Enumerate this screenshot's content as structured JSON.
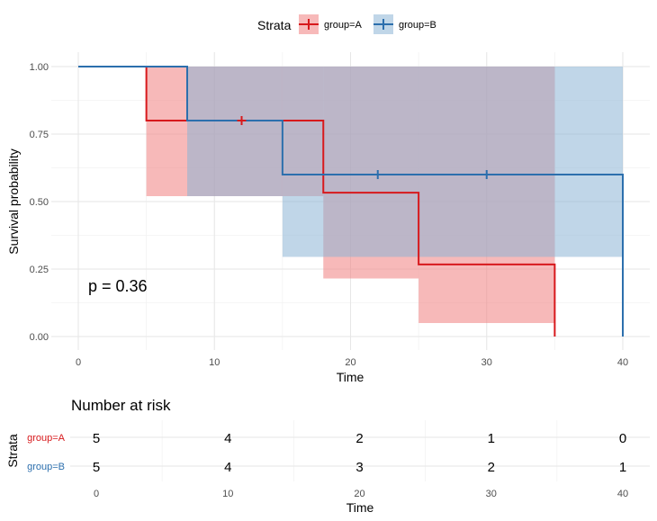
{
  "chart_data": [
    {
      "type": "line",
      "subtype": "kaplan-meier",
      "xlabel": "Time",
      "ylabel": "Survival probability",
      "xlim": [
        0,
        40
      ],
      "ylim": [
        0,
        1
      ],
      "x_ticks": [
        0,
        10,
        20,
        30,
        40
      ],
      "y_ticks": [
        0,
        0.25,
        0.5,
        0.75,
        1
      ],
      "x_tick_labels": [
        "0",
        "10",
        "20",
        "30",
        "40"
      ],
      "y_tick_labels": [
        "0.00",
        "0.25",
        "0.50",
        "0.75",
        "1.00"
      ],
      "grid": true,
      "legend": {
        "title": "Strata",
        "position": "top"
      },
      "annotation": "p = 0.36",
      "series": [
        {
          "name": "group=A",
          "color": "#d7191c",
          "band_color": "#f08080",
          "steps": [
            {
              "t": 0,
              "s": 1.0,
              "lower": 1.0,
              "upper": 1.0
            },
            {
              "t": 5,
              "s": 0.8,
              "lower": 0.52,
              "upper": 1.0
            },
            {
              "t": 18,
              "s": 0.533,
              "lower": 0.215,
              "upper": 1.0
            },
            {
              "t": 25,
              "s": 0.267,
              "lower": 0.05,
              "upper": 1.0
            },
            {
              "t": 35,
              "s": 0.0
            }
          ],
          "censor_times": [
            12
          ],
          "censor_values": [
            0.8
          ]
        },
        {
          "name": "group=B",
          "color": "#2c6fad",
          "band_color": "#8db4d6",
          "steps": [
            {
              "t": 0,
              "s": 1.0,
              "lower": 1.0,
              "upper": 1.0
            },
            {
              "t": 8,
              "s": 0.8,
              "lower": 0.52,
              "upper": 1.0
            },
            {
              "t": 15,
              "s": 0.6,
              "lower": 0.295,
              "upper": 1.0
            },
            {
              "t": 40,
              "s": 0.0
            }
          ],
          "censor_times": [
            22,
            30
          ],
          "censor_values": [
            0.6,
            0.6
          ]
        }
      ]
    },
    {
      "type": "table",
      "title": "Number at risk",
      "xlabel": "Time",
      "ylabel": "Strata",
      "xlim": [
        0,
        40
      ],
      "x_ticks": [
        0,
        10,
        20,
        30,
        40
      ],
      "x_tick_labels": [
        "0",
        "10",
        "20",
        "30",
        "40"
      ],
      "rows": [
        {
          "name": "group=A",
          "color": "#d7191c",
          "values": [
            "5",
            "4",
            "2",
            "1",
            "0"
          ]
        },
        {
          "name": "group=B",
          "color": "#2c6fad",
          "values": [
            "5",
            "4",
            "3",
            "2",
            "1"
          ]
        }
      ]
    }
  ]
}
